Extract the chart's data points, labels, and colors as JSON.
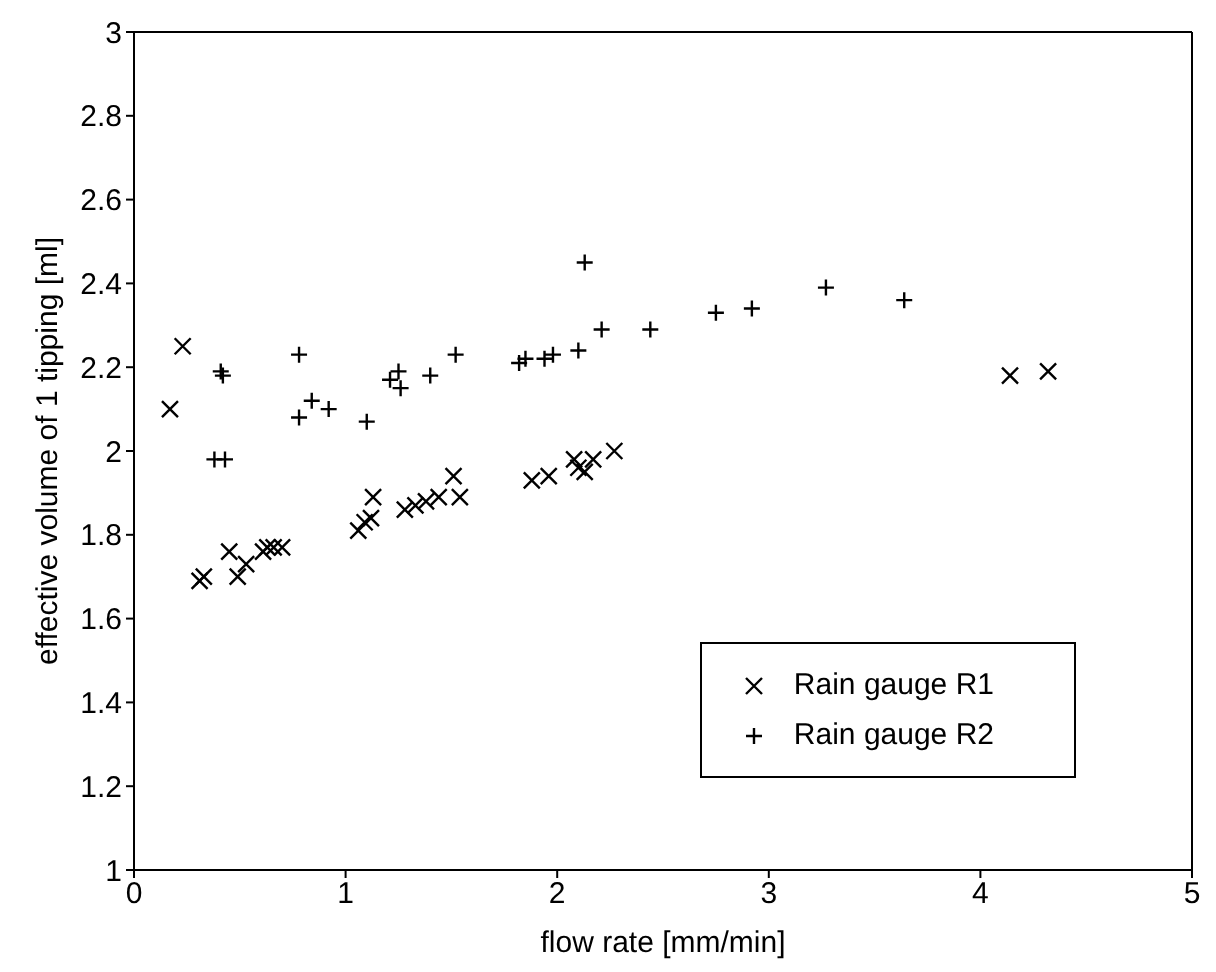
{
  "chart_data": {
    "type": "scatter",
    "xlabel": "flow rate [mm/min]",
    "ylabel": "effective volume of 1 tipping [ml]",
    "xlim": [
      0,
      5
    ],
    "ylim": [
      1,
      3
    ],
    "xticks": [
      0,
      1,
      2,
      3,
      4,
      5
    ],
    "yticks": [
      1,
      1.2,
      1.4,
      1.6,
      1.8,
      2,
      2.2,
      2.4,
      2.6,
      2.8,
      3
    ],
    "legend": "bottom right",
    "series": [
      {
        "name": "Rain gauge R1",
        "color": "#000000",
        "marker": "x",
        "x": [
          0.17,
          0.23,
          0.31,
          0.33,
          0.45,
          0.49,
          0.53,
          0.61,
          0.63,
          0.66,
          0.7,
          1.06,
          1.09,
          1.12,
          1.13,
          1.28,
          1.33,
          1.38,
          1.44,
          1.51,
          1.54,
          1.88,
          1.96,
          2.08,
          2.1,
          2.13,
          2.17,
          2.27,
          4.14,
          4.32
        ],
        "values": [
          2.1,
          2.25,
          1.69,
          1.7,
          1.76,
          1.7,
          1.73,
          1.76,
          1.77,
          1.77,
          1.77,
          1.81,
          1.83,
          1.84,
          1.89,
          1.86,
          1.87,
          1.88,
          1.89,
          1.94,
          1.89,
          1.93,
          1.94,
          1.98,
          1.96,
          1.95,
          1.98,
          2.0,
          2.18,
          2.19
        ]
      },
      {
        "name": "Rain gauge R2",
        "color": "#000000",
        "marker": "cross",
        "x": [
          0.38,
          0.41,
          0.42,
          0.43,
          0.78,
          0.78,
          0.84,
          0.92,
          1.1,
          1.21,
          1.25,
          1.26,
          1.4,
          1.52,
          1.82,
          1.85,
          1.94,
          1.98,
          2.1,
          2.13,
          2.21,
          2.44,
          2.75,
          2.92,
          3.27,
          3.64
        ],
        "values": [
          1.98,
          2.19,
          2.18,
          1.98,
          2.23,
          2.08,
          2.12,
          2.1,
          2.07,
          2.17,
          2.19,
          2.15,
          2.18,
          2.23,
          2.21,
          2.22,
          2.22,
          2.23,
          2.24,
          2.45,
          2.29,
          2.29,
          2.33,
          2.34,
          2.39,
          2.36
        ]
      }
    ]
  }
}
